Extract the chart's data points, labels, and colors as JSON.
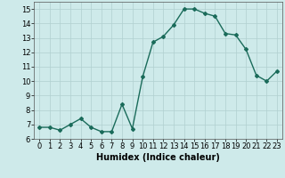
{
  "x": [
    0,
    1,
    2,
    3,
    4,
    5,
    6,
    7,
    8,
    9,
    10,
    11,
    12,
    13,
    14,
    15,
    16,
    17,
    18,
    19,
    20,
    21,
    22,
    23
  ],
  "y": [
    6.8,
    6.8,
    6.6,
    7.0,
    7.4,
    6.8,
    6.5,
    6.5,
    8.4,
    6.7,
    10.3,
    12.7,
    13.1,
    13.9,
    15.0,
    15.0,
    14.7,
    14.5,
    13.3,
    13.2,
    12.2,
    10.4,
    10.0,
    10.7
  ],
  "line_color": "#1a6b5a",
  "marker": "D",
  "marker_size": 2.0,
  "background_color": "#ceeaea",
  "grid_color": "#b0d0d0",
  "xlabel": "Humidex (Indice chaleur)",
  "xlim": [
    -0.5,
    23.5
  ],
  "ylim": [
    6,
    15.5
  ],
  "yticks": [
    6,
    7,
    8,
    9,
    10,
    11,
    12,
    13,
    14,
    15
  ],
  "xticks": [
    0,
    1,
    2,
    3,
    4,
    5,
    6,
    7,
    8,
    9,
    10,
    11,
    12,
    13,
    14,
    15,
    16,
    17,
    18,
    19,
    20,
    21,
    22,
    23
  ],
  "xlabel_fontsize": 7,
  "tick_fontsize": 6,
  "line_width": 1.0
}
